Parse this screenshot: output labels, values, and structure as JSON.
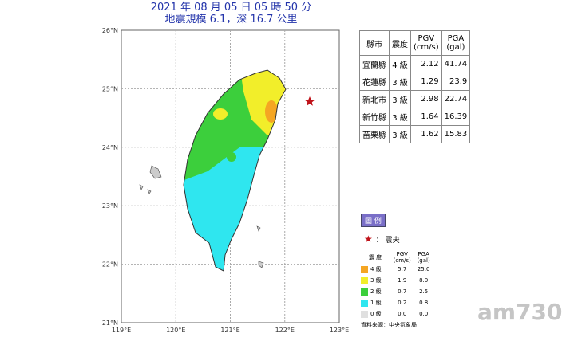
{
  "title": {
    "line1": "2021 年 08 月 05 日 05 時 50 分",
    "line2": "地震規模 6.1，深 16.7 公里"
  },
  "map": {
    "lat_labels": [
      "26°N",
      "25°N",
      "24°N",
      "23°N",
      "22°N",
      "21°N"
    ],
    "lon_labels": [
      "119°E",
      "120°E",
      "121°E",
      "122°E",
      "123°E"
    ]
  },
  "table": {
    "header": [
      [
        "縣市"
      ],
      [
        "震度"
      ],
      [
        "PGV",
        "(cm/s)"
      ],
      [
        "PGA",
        "(gal)"
      ]
    ],
    "rows": [
      [
        "宜蘭縣",
        "4 級",
        "2.12",
        "41.74"
      ],
      [
        "花蓮縣",
        "3 級",
        "1.29",
        "23.9"
      ],
      [
        "新北市",
        "3 級",
        "2.98",
        "22.74"
      ],
      [
        "新竹縣",
        "3 級",
        "1.64",
        "16.39"
      ],
      [
        "苗栗縣",
        "3 級",
        "1.62",
        "15.83"
      ]
    ]
  },
  "legend": {
    "title": "圖 例",
    "epicenter": "：  震央",
    "header": [
      "震 度",
      [
        "PGV",
        "(cm/s)"
      ],
      [
        "PGA",
        "(gal)"
      ]
    ],
    "rows": [
      {
        "level": "4 級",
        "pgv": "5.7",
        "pga": "25.0",
        "color": "#f5a623"
      },
      {
        "level": "3 級",
        "pgv": "1.9",
        "pga": "8.0",
        "color": "#f2ee2a"
      },
      {
        "level": "2 級",
        "pgv": "0.7",
        "pga": "2.5",
        "color": "#3ccf3c"
      },
      {
        "level": "1 級",
        "pgv": "0.2",
        "pga": "0.8",
        "color": "#2fe6ef"
      },
      {
        "level": "0 級",
        "pgv": "0.0",
        "pga": "0.0",
        "color": "#e0e0e0"
      }
    ],
    "source": "資料來源：中央氣象局"
  },
  "watermark": "am730"
}
